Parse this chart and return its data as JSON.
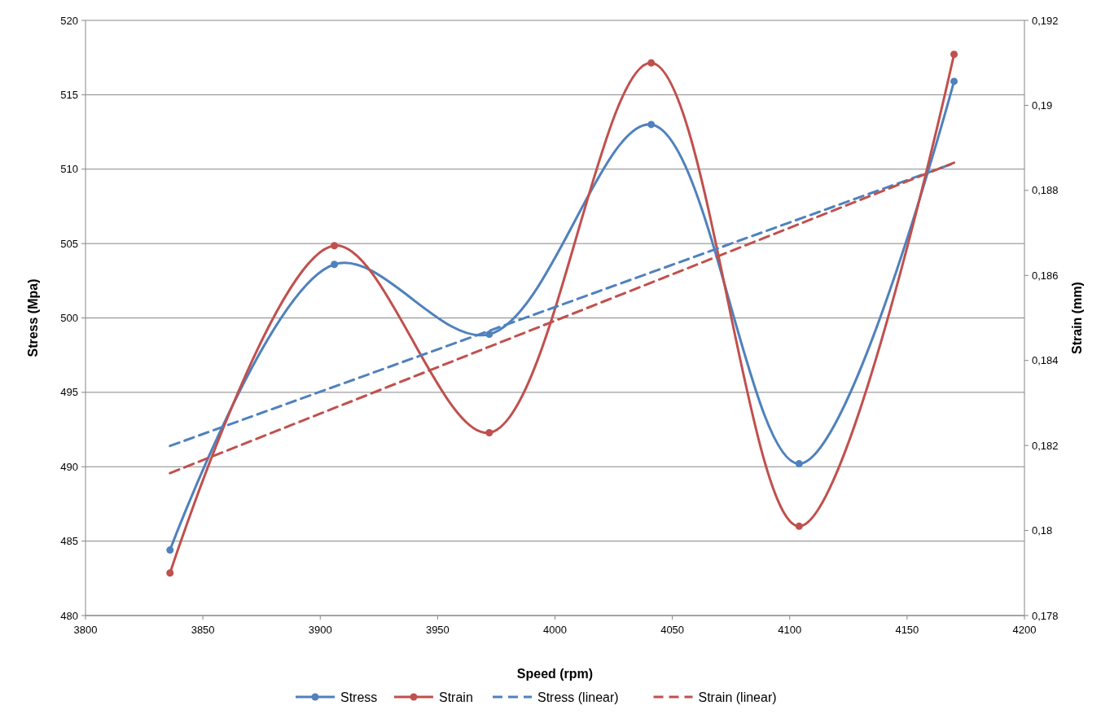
{
  "chart_data": {
    "type": "line",
    "xlabel": "Speed (rpm)",
    "ylabel": "Stress (Mpa)",
    "y2label": "Strain (mm)",
    "xlim": [
      3800,
      4200
    ],
    "xticks": [
      3800,
      3850,
      3900,
      3950,
      4000,
      4050,
      4100,
      4150,
      4200
    ],
    "ylim": [
      480,
      520
    ],
    "yticks": [
      480,
      485,
      490,
      495,
      500,
      505,
      510,
      515,
      520
    ],
    "y2lim": [
      0.178,
      0.192
    ],
    "y2ticks": [
      {
        "value": 0.178,
        "label": "0,178"
      },
      {
        "value": 0.18,
        "label": "0,18"
      },
      {
        "value": 0.182,
        "label": "0,182"
      },
      {
        "value": 0.184,
        "label": "0,184"
      },
      {
        "value": 0.186,
        "label": "0,186"
      },
      {
        "value": 0.188,
        "label": "0,188"
      },
      {
        "value": 0.19,
        "label": "0,19"
      },
      {
        "value": 0.192,
        "label": "0,192"
      }
    ],
    "grid": "y",
    "legend": "bottom",
    "series": [
      {
        "name": "Stress",
        "color": "#4f81bd",
        "marker": "circle",
        "line_style": "solid",
        "x": [
          3836,
          3906,
          3972,
          4041,
          4104,
          4170
        ],
        "values": [
          484.4,
          503.6,
          498.9,
          513.0,
          490.2,
          515.9
        ]
      },
      {
        "name": "Strain",
        "color": "#c0504d",
        "marker": "circle",
        "line_style": "solid",
        "axis": "y2",
        "x": [
          3836,
          3906,
          3972,
          4041,
          4104,
          4170
        ],
        "values": [
          0.179,
          0.1867,
          0.1823,
          0.191,
          0.1801,
          0.1912
        ]
      },
      {
        "name": "Stress (linear)",
        "color": "#4f81bd",
        "marker": "none",
        "line_style": "dashed",
        "x": [
          3836,
          4170
        ],
        "values": [
          491.4,
          510.4
        ]
      },
      {
        "name": "Strain (linear)",
        "color": "#c0504d",
        "marker": "none",
        "line_style": "dashed",
        "axis": "y2",
        "x": [
          3836,
          4170
        ],
        "values": [
          0.18135,
          0.18865
        ]
      }
    ]
  }
}
